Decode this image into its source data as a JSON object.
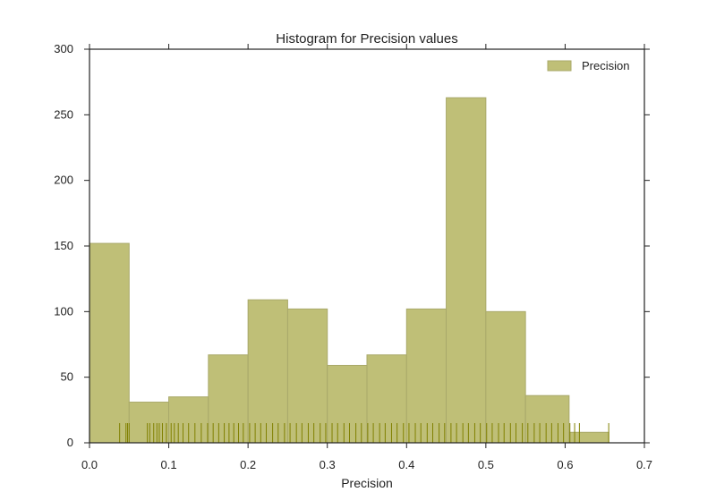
{
  "chart_data": {
    "type": "bar",
    "title": "Histogram for Precision values",
    "xlabel": "Precision",
    "ylabel": "",
    "xlim": [
      0.0,
      0.7
    ],
    "ylim": [
      0,
      300
    ],
    "xticks": [
      "0.0",
      "0.1",
      "0.2",
      "0.3",
      "0.4",
      "0.5",
      "0.6",
      "0.7"
    ],
    "yticks": [
      "0",
      "50",
      "100",
      "150",
      "200",
      "250",
      "300"
    ],
    "grid": false,
    "legend_position": "top-right",
    "bar_color": "#bfbf77",
    "bar_edge_color": "#a9a96a",
    "rug_color": "#808000",
    "series": [
      {
        "name": "Precision",
        "bins": [
          {
            "x0": 0.0,
            "x1": 0.05,
            "count": 152
          },
          {
            "x0": 0.05,
            "x1": 0.1,
            "count": 31
          },
          {
            "x0": 0.1,
            "x1": 0.15,
            "count": 35
          },
          {
            "x0": 0.15,
            "x1": 0.2,
            "count": 67
          },
          {
            "x0": 0.2,
            "x1": 0.25,
            "count": 109
          },
          {
            "x0": 0.25,
            "x1": 0.3,
            "count": 102
          },
          {
            "x0": 0.3,
            "x1": 0.35,
            "count": 59
          },
          {
            "x0": 0.35,
            "x1": 0.4,
            "count": 67
          },
          {
            "x0": 0.4,
            "x1": 0.45,
            "count": 102
          },
          {
            "x0": 0.45,
            "x1": 0.5,
            "count": 263
          },
          {
            "x0": 0.5,
            "x1": 0.55,
            "count": 100
          },
          {
            "x0": 0.55,
            "x1": 0.605,
            "count": 36
          },
          {
            "x0": 0.605,
            "x1": 0.655,
            "count": 8
          }
        ],
        "rug_values": [
          0.0,
          0.038,
          0.046,
          0.048,
          0.05,
          0.073,
          0.076,
          0.081,
          0.085,
          0.088,
          0.092,
          0.097,
          0.103,
          0.107,
          0.112,
          0.118,
          0.125,
          0.133,
          0.141,
          0.149,
          0.156,
          0.163,
          0.17,
          0.176,
          0.182,
          0.188,
          0.194,
          0.202,
          0.209,
          0.216,
          0.223,
          0.231,
          0.238,
          0.246,
          0.253,
          0.261,
          0.268,
          0.276,
          0.283,
          0.291,
          0.298,
          0.306,
          0.313,
          0.321,
          0.328,
          0.336,
          0.343,
          0.351,
          0.358,
          0.366,
          0.373,
          0.381,
          0.388,
          0.396,
          0.403,
          0.411,
          0.418,
          0.426,
          0.433,
          0.441,
          0.448,
          0.456,
          0.463,
          0.471,
          0.478,
          0.486,
          0.493,
          0.501,
          0.508,
          0.516,
          0.523,
          0.531,
          0.538,
          0.546,
          0.553,
          0.561,
          0.568,
          0.576,
          0.583,
          0.591,
          0.598,
          0.606,
          0.612,
          0.618,
          0.655
        ]
      }
    ]
  }
}
